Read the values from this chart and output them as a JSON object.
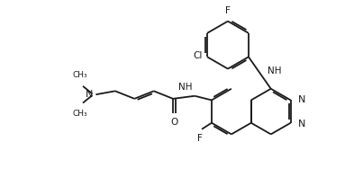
{
  "bg_color": "#ffffff",
  "line_color": "#1a1a1a",
  "text_color": "#1a1a1a",
  "font_size": 7.0,
  "line_width": 1.3,
  "figsize": [
    3.93,
    2.17
  ],
  "dpi": 100,
  "xlim": [
    0,
    10
  ],
  "ylim": [
    0,
    5.5
  ]
}
